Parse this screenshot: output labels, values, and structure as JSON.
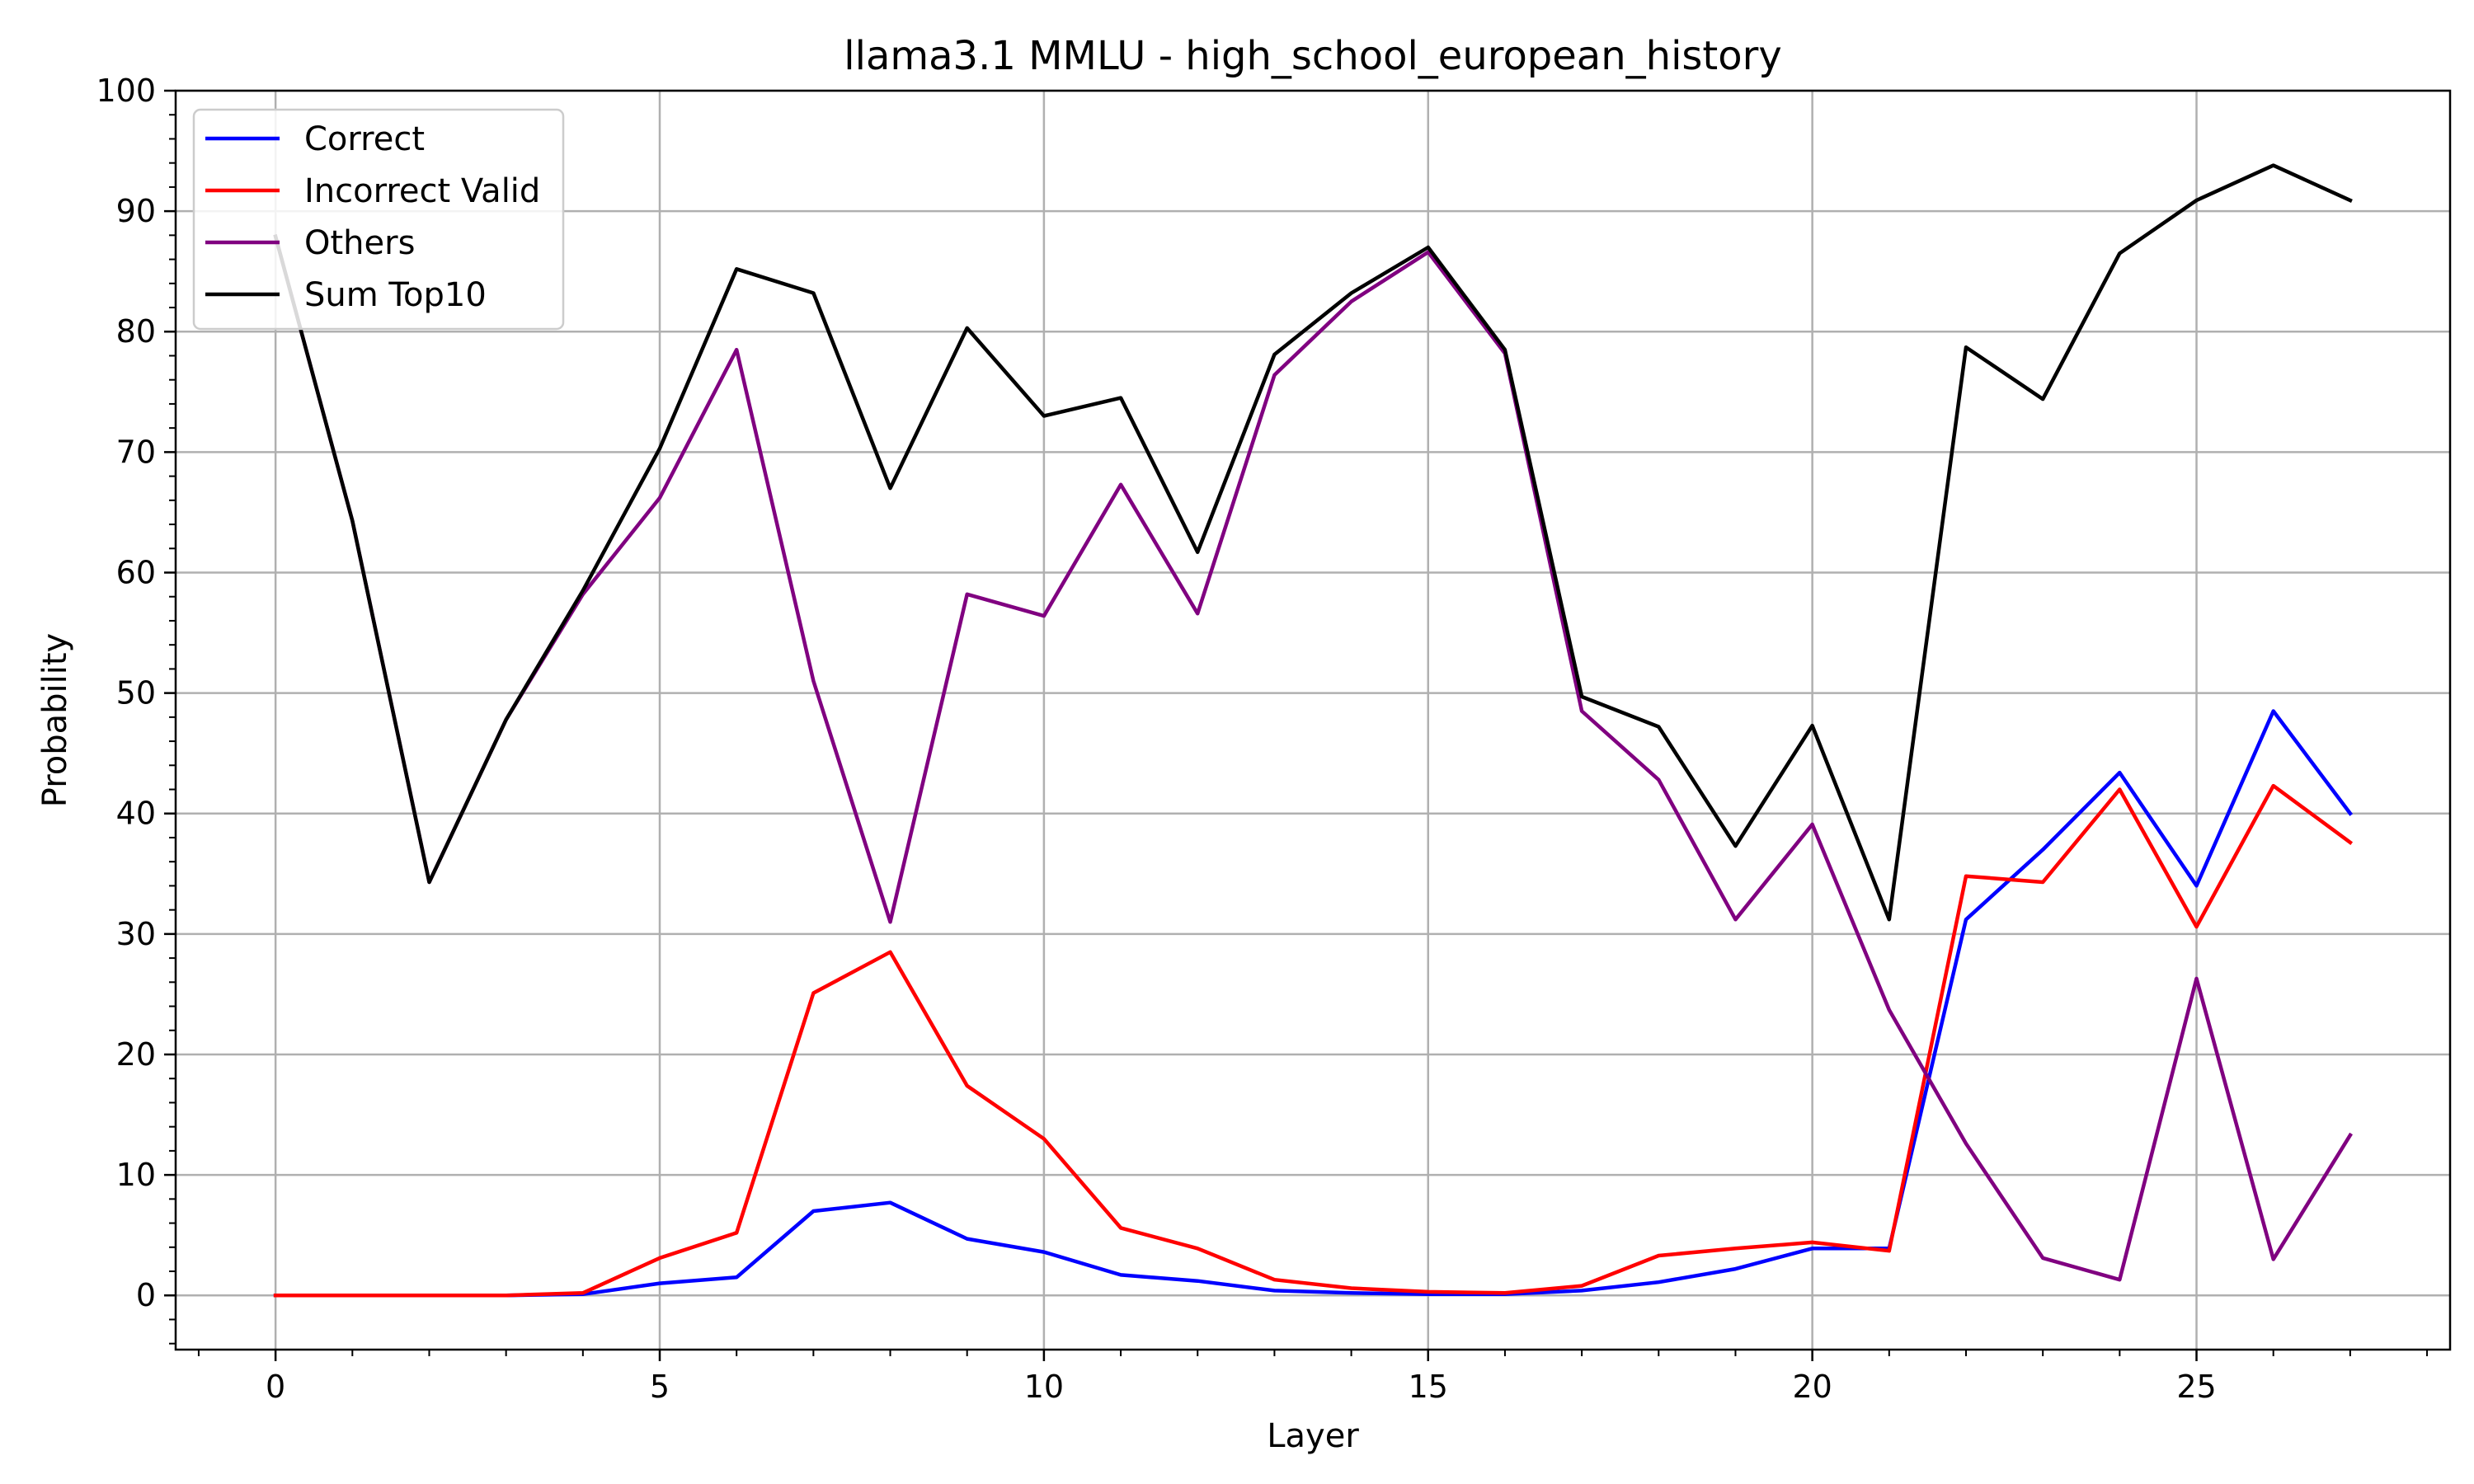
{
  "chart_data": {
    "type": "line",
    "title": "llama3.1 MMLU - high_school_european_history",
    "xlabel": "Layer",
    "ylabel": "Probability",
    "xlim": [
      -1.3,
      28.3
    ],
    "ylim": [
      -4.5,
      100
    ],
    "x": [
      0,
      1,
      2,
      3,
      4,
      5,
      6,
      7,
      8,
      9,
      10,
      11,
      12,
      13,
      14,
      15,
      16,
      17,
      18,
      19,
      20,
      21,
      22,
      23,
      24,
      25,
      26,
      27
    ],
    "x_ticks": [
      0,
      5,
      10,
      15,
      20,
      25
    ],
    "y_ticks": [
      0,
      10,
      20,
      30,
      40,
      50,
      60,
      70,
      80,
      90,
      100
    ],
    "grid": true,
    "legend_position": "top-left",
    "series": [
      {
        "name": "Correct",
        "color": "#0000ff",
        "values": [
          0,
          0,
          0,
          0,
          0.1,
          1,
          1.5,
          7,
          7.7,
          4.7,
          3.6,
          1.7,
          1.2,
          0.4,
          0.2,
          0.1,
          0.1,
          0.4,
          1.1,
          2.2,
          3.9,
          3.9,
          31.2,
          37,
          43.4,
          34,
          48.5,
          40
        ]
      },
      {
        "name": "Incorrect Valid",
        "color": "#ff0000",
        "values": [
          0,
          0,
          0,
          0,
          0.2,
          3.1,
          5.2,
          25.1,
          28.5,
          17.4,
          13,
          5.6,
          3.9,
          1.3,
          0.6,
          0.3,
          0.2,
          0.8,
          3.3,
          3.9,
          4.4,
          3.7,
          34.8,
          34.3,
          42,
          30.6,
          42.3,
          37.6
        ]
      },
      {
        "name": "Others",
        "color": "#800080",
        "values": [
          87.9,
          64.3,
          34.3,
          47.8,
          58.2,
          66.2,
          78.5,
          51,
          31,
          58.2,
          56.4,
          67.3,
          56.6,
          76.4,
          82.5,
          86.6,
          78.2,
          48.5,
          42.8,
          31.2,
          39.1,
          23.7,
          12.6,
          3.1,
          1.3,
          26.3,
          3,
          13.3
        ]
      },
      {
        "name": "Sum Top10",
        "color": "#000000",
        "values": [
          87.9,
          64.3,
          34.3,
          47.8,
          58.5,
          70.3,
          85.2,
          83.2,
          67,
          80.3,
          73,
          74.5,
          61.7,
          78.1,
          83.2,
          87,
          78.5,
          49.7,
          47.2,
          37.3,
          47.3,
          31.2,
          78.7,
          74.4,
          86.5,
          90.9,
          93.8,
          90.9
        ]
      }
    ]
  }
}
